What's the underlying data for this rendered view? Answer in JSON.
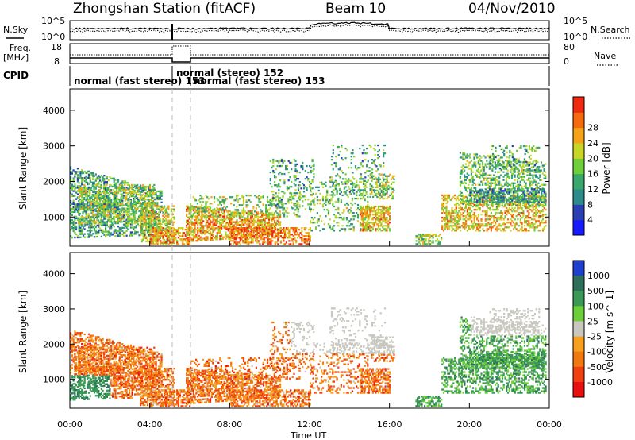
{
  "header": {
    "station": "Zhongshan Station (fitACF)",
    "beam": "Beam 10",
    "date": "04/Nov/2010"
  },
  "summary": {
    "nsky_label": "N.Sky",
    "nsearch_label": "N.Search",
    "nsky_ticks": [
      "10^5",
      "10^0"
    ],
    "nsearch_ticks": [
      "10^5",
      "10^0"
    ],
    "freq_label": "Freq.",
    "freq_unit": "[MHz]",
    "freq_ticks": [
      "18",
      "8"
    ],
    "nave_label": "Nave",
    "nave_ticks": [
      "80",
      "0"
    ],
    "cpid_label": "CPID",
    "cpid_segments": [
      {
        "text": "normal (fast stereo) 153"
      },
      {
        "text": "normal (stereo) 152"
      },
      {
        "text": "normal (fast stereo) 153"
      }
    ]
  },
  "chart_data": [
    {
      "type": "heatmap",
      "panel": "power",
      "ylabel": "Slant Range [km]",
      "xlabel": "",
      "yticks": [
        1000,
        2000,
        3000,
        4000
      ],
      "ylim": [
        180,
        4600
      ],
      "xlim": [
        0,
        24
      ],
      "colorbar_label": "Power [dB]",
      "colorbar_ticks": [
        "4",
        "8",
        "12",
        "16",
        "20",
        "24",
        "28"
      ],
      "colors": [
        "#1a1aff",
        "#2a3fb0",
        "#2e8b8b",
        "#3aa86a",
        "#6fcf3a",
        "#c8d628",
        "#f4a21a",
        "#f56a10",
        "#ee2a10"
      ]
    },
    {
      "type": "heatmap",
      "panel": "velocity",
      "ylabel": "Slant Range [km]",
      "xlabel": "Time UT",
      "xticks": [
        "00:00",
        "04:00",
        "08:00",
        "12:00",
        "16:00",
        "20:00",
        "00:00"
      ],
      "yticks": [
        1000,
        2000,
        3000,
        4000
      ],
      "ylim": [
        180,
        4600
      ],
      "xlim": [
        0,
        24
      ],
      "colorbar_label": "Velocity [m s^-1]",
      "colorbar_ticks": [
        "1000",
        "500",
        "100",
        "25",
        "-25",
        "-100",
        "-500",
        "-1000"
      ],
      "colors": [
        "#1f3fcf",
        "#2e6f5a",
        "#3a9a55",
        "#6ccf3a",
        "#c8c8c0",
        "#f5a020",
        "#f07810",
        "#f04010",
        "#e81010"
      ]
    }
  ]
}
